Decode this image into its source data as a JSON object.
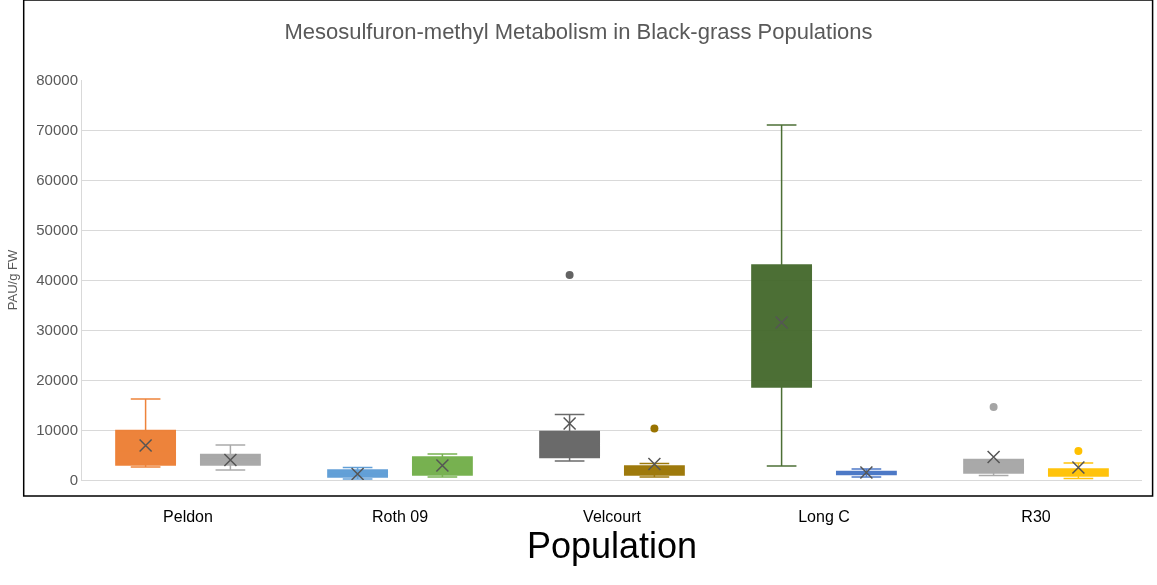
{
  "chart_data": {
    "type": "box",
    "title": "Mesosulfuron-methyl Metabolism in Black-grass Populations",
    "xlabel": "Population",
    "ylabel": "PAU/g FW",
    "categories": [
      "Peldon",
      "Roth 09",
      "Velcourt",
      "Long C",
      "R30"
    ],
    "series": [
      {
        "colors": [
          "#ed7d31",
          "#5b9bd5",
          "#636363",
          "#43682b",
          "#a5a5a5"
        ],
        "boxes": [
          {
            "low": 2600,
            "q1": 3000,
            "median": 5800,
            "q3": 9900,
            "high": 16200,
            "mean": 6900
          },
          {
            "low": 200,
            "q1": 600,
            "median": 1200,
            "q3": 2000,
            "high": 2500,
            "mean": 1200
          },
          {
            "low": 3800,
            "q1": 4500,
            "median": 7100,
            "q3": 9700,
            "high": 13100,
            "mean": 11300,
            "outliers": [
              41000
            ]
          },
          {
            "low": 2800,
            "q1": 18600,
            "median": 27700,
            "q3": 43000,
            "high": 71000,
            "mean": 31500
          },
          {
            "low": 900,
            "q1": 1400,
            "median": 3000,
            "q3": 4100,
            "high": 4100,
            "mean": 4600,
            "outliers": [
              14600
            ]
          }
        ]
      },
      {
        "colors": [
          "#a5a5a5",
          "#70ad47",
          "#997300",
          "#4472c4",
          "#ffc000"
        ],
        "boxes": [
          {
            "low": 2000,
            "q1": 3000,
            "median": 4100,
            "q3": 5100,
            "high": 7000,
            "mean": 4000
          },
          {
            "low": 600,
            "q1": 1000,
            "median": 3000,
            "q3": 4600,
            "high": 5200,
            "mean": 2900
          },
          {
            "low": 600,
            "q1": 1000,
            "median": 2000,
            "q3": 2800,
            "high": 3300,
            "mean": 3200,
            "outliers": [
              10300
            ]
          },
          {
            "low": 600,
            "q1": 1100,
            "median": 1400,
            "q3": 1700,
            "high": 2200,
            "mean": 1500
          },
          {
            "low": 300,
            "q1": 800,
            "median": 1800,
            "q3": 2200,
            "high": 3400,
            "mean": 2500,
            "outliers": [
              5800
            ]
          }
        ]
      }
    ],
    "ylim": [
      0,
      80000
    ],
    "yticks": [
      0,
      10000,
      20000,
      30000,
      40000,
      50000,
      60000,
      70000,
      80000
    ],
    "grid": "y"
  }
}
